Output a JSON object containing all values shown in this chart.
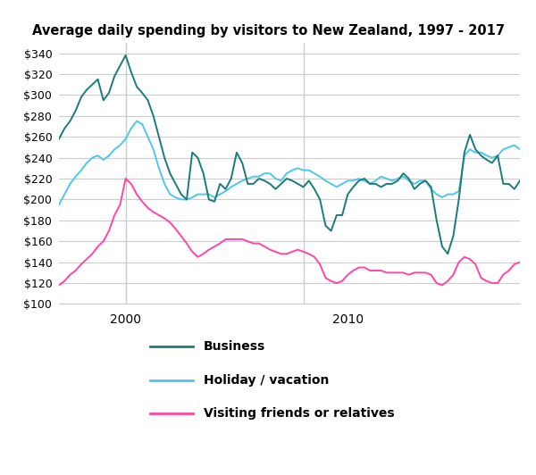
{
  "title": "Average daily spending by visitors to New Zealand, 1997 - 2017",
  "ylim": [
    100,
    350
  ],
  "yticks": [
    100,
    120,
    140,
    160,
    180,
    200,
    220,
    240,
    260,
    280,
    300,
    320,
    340
  ],
  "xlim": [
    1997.0,
    2017.75
  ],
  "xticks": [
    2000,
    2010
  ],
  "vlines": [
    2000,
    2008
  ],
  "business_color": "#1b7b7b",
  "holiday_color": "#4ec8e8",
  "vfr_color": "#ff44aa",
  "legend_labels": [
    "Business",
    "Holiday / vacation",
    "Visiting friends or relatives"
  ],
  "linewidth": 1.4,
  "background_color": "#ffffff",
  "grid_color": "#cccccc",
  "years": [
    1997.0,
    1997.25,
    1997.5,
    1997.75,
    1998.0,
    1998.25,
    1998.5,
    1998.75,
    1999.0,
    1999.25,
    1999.5,
    1999.75,
    2000.0,
    2000.25,
    2000.5,
    2000.75,
    2001.0,
    2001.25,
    2001.5,
    2001.75,
    2002.0,
    2002.25,
    2002.5,
    2002.75,
    2003.0,
    2003.25,
    2003.5,
    2003.75,
    2004.0,
    2004.25,
    2004.5,
    2004.75,
    2005.0,
    2005.25,
    2005.5,
    2005.75,
    2006.0,
    2006.25,
    2006.5,
    2006.75,
    2007.0,
    2007.25,
    2007.5,
    2007.75,
    2008.0,
    2008.25,
    2008.5,
    2008.75,
    2009.0,
    2009.25,
    2009.5,
    2009.75,
    2010.0,
    2010.25,
    2010.5,
    2010.75,
    2011.0,
    2011.25,
    2011.5,
    2011.75,
    2012.0,
    2012.25,
    2012.5,
    2012.75,
    2013.0,
    2013.25,
    2013.5,
    2013.75,
    2014.0,
    2014.25,
    2014.5,
    2014.75,
    2015.0,
    2015.25,
    2015.5,
    2015.75,
    2016.0,
    2016.25,
    2016.5,
    2016.75,
    2017.0,
    2017.25,
    2017.5,
    2017.75
  ],
  "business": [
    258,
    268,
    275,
    285,
    298,
    305,
    310,
    315,
    295,
    302,
    318,
    328,
    338,
    322,
    308,
    302,
    295,
    280,
    260,
    240,
    225,
    215,
    205,
    200,
    245,
    240,
    225,
    200,
    198,
    215,
    210,
    220,
    245,
    235,
    215,
    215,
    220,
    218,
    215,
    210,
    215,
    220,
    218,
    215,
    212,
    218,
    210,
    200,
    175,
    170,
    185,
    185,
    205,
    212,
    218,
    220,
    215,
    215,
    212,
    215,
    215,
    218,
    225,
    220,
    210,
    215,
    218,
    212,
    180,
    155,
    148,
    165,
    200,
    245,
    262,
    248,
    242,
    238,
    235,
    242,
    215,
    215,
    210,
    218
  ],
  "holiday": [
    195,
    205,
    215,
    222,
    228,
    235,
    240,
    242,
    238,
    242,
    248,
    252,
    258,
    268,
    275,
    272,
    260,
    248,
    230,
    215,
    205,
    202,
    200,
    200,
    202,
    205,
    205,
    205,
    202,
    205,
    208,
    212,
    215,
    218,
    220,
    222,
    222,
    225,
    225,
    220,
    218,
    225,
    228,
    230,
    228,
    228,
    225,
    222,
    218,
    215,
    212,
    215,
    218,
    218,
    220,
    218,
    215,
    218,
    222,
    220,
    218,
    220,
    222,
    218,
    215,
    218,
    218,
    210,
    205,
    202,
    205,
    205,
    208,
    242,
    248,
    245,
    245,
    242,
    240,
    242,
    248,
    250,
    252,
    248
  ],
  "vfr": [
    118,
    122,
    128,
    132,
    138,
    143,
    148,
    155,
    160,
    170,
    185,
    195,
    220,
    215,
    205,
    198,
    192,
    188,
    185,
    182,
    178,
    172,
    165,
    158,
    150,
    145,
    148,
    152,
    155,
    158,
    162,
    162,
    162,
    162,
    160,
    158,
    158,
    155,
    152,
    150,
    148,
    148,
    150,
    152,
    150,
    148,
    145,
    138,
    125,
    122,
    120,
    122,
    128,
    132,
    135,
    135,
    132,
    132,
    132,
    130,
    130,
    130,
    130,
    128,
    130,
    130,
    130,
    128,
    120,
    118,
    122,
    128,
    140,
    145,
    143,
    138,
    125,
    122,
    120,
    120,
    128,
    132,
    138,
    140
  ]
}
